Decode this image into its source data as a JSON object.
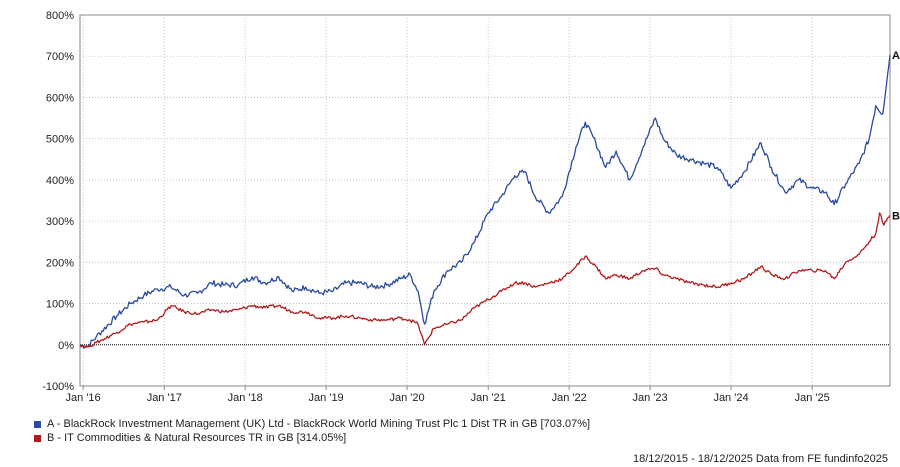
{
  "chart_data": {
    "type": "line",
    "yticks": [
      "800%",
      "700%",
      "600%",
      "500%",
      "400%",
      "300%",
      "200%",
      "100%",
      "0%",
      "-100%"
    ],
    "ylim": [
      -100,
      800
    ],
    "xticks": [
      "Jan '16",
      "Jan '17",
      "Jan '18",
      "Jan '19",
      "Jan '20",
      "Jan '21",
      "Jan '22",
      "Jan '23",
      "Jan '24",
      "Jan '25"
    ],
    "xlim": [
      "2015-12-18",
      "2025-12-18"
    ],
    "grid": true,
    "series": [
      {
        "name": "A - BlackRock Investment Management (UK) Ltd - BlackRock World Mining Trust Plc 1 Dist TR in GB [703.07%]",
        "end_label": "A",
        "color": "#2a4b9b",
        "points": [
          [
            "2015-12-18",
            0
          ],
          [
            "2016-01-20",
            -5
          ],
          [
            "2016-03-01",
            20
          ],
          [
            "2016-06-01",
            70
          ],
          [
            "2016-08-01",
            100
          ],
          [
            "2016-10-01",
            120
          ],
          [
            "2016-12-01",
            135
          ],
          [
            "2017-02-01",
            140
          ],
          [
            "2017-04-01",
            120
          ],
          [
            "2017-06-01",
            125
          ],
          [
            "2017-08-01",
            150
          ],
          [
            "2017-10-01",
            145
          ],
          [
            "2017-12-01",
            145
          ],
          [
            "2018-02-01",
            165
          ],
          [
            "2018-04-01",
            150
          ],
          [
            "2018-06-01",
            165
          ],
          [
            "2018-08-01",
            130
          ],
          [
            "2018-10-01",
            140
          ],
          [
            "2018-12-01",
            125
          ],
          [
            "2019-02-01",
            130
          ],
          [
            "2019-04-01",
            150
          ],
          [
            "2019-06-01",
            150
          ],
          [
            "2019-08-01",
            140
          ],
          [
            "2019-10-01",
            145
          ],
          [
            "2019-12-01",
            160
          ],
          [
            "2020-01-15",
            170
          ],
          [
            "2020-02-20",
            130
          ],
          [
            "2020-03-20",
            50
          ],
          [
            "2020-05-01",
            130
          ],
          [
            "2020-07-01",
            180
          ],
          [
            "2020-09-01",
            200
          ],
          [
            "2020-11-01",
            250
          ],
          [
            "2021-01-01",
            320
          ],
          [
            "2021-03-01",
            360
          ],
          [
            "2021-05-01",
            410
          ],
          [
            "2021-06-15",
            420
          ],
          [
            "2021-08-01",
            360
          ],
          [
            "2021-10-01",
            320
          ],
          [
            "2021-12-01",
            360
          ],
          [
            "2022-02-01",
            480
          ],
          [
            "2022-03-15",
            540
          ],
          [
            "2022-05-01",
            490
          ],
          [
            "2022-06-15",
            430
          ],
          [
            "2022-08-01",
            470
          ],
          [
            "2022-10-01",
            400
          ],
          [
            "2022-12-01",
            480
          ],
          [
            "2023-01-25",
            550
          ],
          [
            "2023-03-01",
            500
          ],
          [
            "2023-05-01",
            460
          ],
          [
            "2023-07-01",
            450
          ],
          [
            "2023-09-01",
            440
          ],
          [
            "2023-11-01",
            430
          ],
          [
            "2024-01-01",
            380
          ],
          [
            "2024-03-01",
            420
          ],
          [
            "2024-05-15",
            490
          ],
          [
            "2024-07-01",
            430
          ],
          [
            "2024-09-01",
            370
          ],
          [
            "2024-11-01",
            400
          ],
          [
            "2025-01-01",
            380
          ],
          [
            "2025-03-01",
            370
          ],
          [
            "2025-04-10",
            340
          ],
          [
            "2025-06-01",
            390
          ],
          [
            "2025-08-01",
            440
          ],
          [
            "2025-09-15",
            500
          ],
          [
            "2025-10-15",
            580
          ],
          [
            "2025-11-15",
            560
          ],
          [
            "2025-12-18",
            703
          ]
        ]
      },
      {
        "name": "B - IT Commodities & Natural Resources TR in GB [314.05%]",
        "end_label": "B",
        "color": "#b01c1c",
        "points": [
          [
            "2015-12-18",
            0
          ],
          [
            "2016-01-20",
            -5
          ],
          [
            "2016-03-01",
            5
          ],
          [
            "2016-06-01",
            30
          ],
          [
            "2016-08-01",
            50
          ],
          [
            "2016-10-01",
            55
          ],
          [
            "2016-12-01",
            60
          ],
          [
            "2017-02-01",
            95
          ],
          [
            "2017-04-01",
            80
          ],
          [
            "2017-06-01",
            75
          ],
          [
            "2017-08-01",
            85
          ],
          [
            "2017-10-01",
            80
          ],
          [
            "2017-12-01",
            85
          ],
          [
            "2018-02-01",
            95
          ],
          [
            "2018-04-01",
            90
          ],
          [
            "2018-06-01",
            95
          ],
          [
            "2018-08-01",
            80
          ],
          [
            "2018-10-01",
            80
          ],
          [
            "2018-12-01",
            65
          ],
          [
            "2019-02-01",
            65
          ],
          [
            "2019-04-01",
            70
          ],
          [
            "2019-06-01",
            65
          ],
          [
            "2019-08-01",
            60
          ],
          [
            "2019-10-01",
            60
          ],
          [
            "2019-12-01",
            65
          ],
          [
            "2020-01-15",
            60
          ],
          [
            "2020-02-20",
            50
          ],
          [
            "2020-03-20",
            0
          ],
          [
            "2020-05-01",
            40
          ],
          [
            "2020-07-01",
            50
          ],
          [
            "2020-09-01",
            60
          ],
          [
            "2020-11-01",
            90
          ],
          [
            "2021-01-01",
            110
          ],
          [
            "2021-03-01",
            130
          ],
          [
            "2021-05-01",
            150
          ],
          [
            "2021-06-15",
            150
          ],
          [
            "2021-08-01",
            140
          ],
          [
            "2021-10-01",
            150
          ],
          [
            "2021-12-01",
            160
          ],
          [
            "2022-02-01",
            190
          ],
          [
            "2022-03-15",
            215
          ],
          [
            "2022-05-01",
            190
          ],
          [
            "2022-06-15",
            160
          ],
          [
            "2022-08-01",
            170
          ],
          [
            "2022-10-01",
            160
          ],
          [
            "2022-12-01",
            180
          ],
          [
            "2023-01-25",
            185
          ],
          [
            "2023-03-01",
            170
          ],
          [
            "2023-05-01",
            160
          ],
          [
            "2023-07-01",
            150
          ],
          [
            "2023-09-01",
            145
          ],
          [
            "2023-11-01",
            140
          ],
          [
            "2024-01-01",
            150
          ],
          [
            "2024-03-01",
            160
          ],
          [
            "2024-05-15",
            190
          ],
          [
            "2024-07-01",
            170
          ],
          [
            "2024-09-01",
            160
          ],
          [
            "2024-11-01",
            180
          ],
          [
            "2025-01-01",
            180
          ],
          [
            "2025-03-01",
            180
          ],
          [
            "2025-04-10",
            160
          ],
          [
            "2025-06-01",
            200
          ],
          [
            "2025-08-01",
            220
          ],
          [
            "2025-09-15",
            250
          ],
          [
            "2025-10-15",
            270
          ],
          [
            "2025-11-01",
            320
          ],
          [
            "2025-11-20",
            290
          ],
          [
            "2025-12-18",
            314
          ]
        ]
      }
    ],
    "footer": "18/12/2015 - 18/12/2025 Data from FE fundinfo2025"
  },
  "colors": {
    "zero_line": "#000000",
    "grid": "#bbbbbb",
    "axis": "#888888"
  }
}
